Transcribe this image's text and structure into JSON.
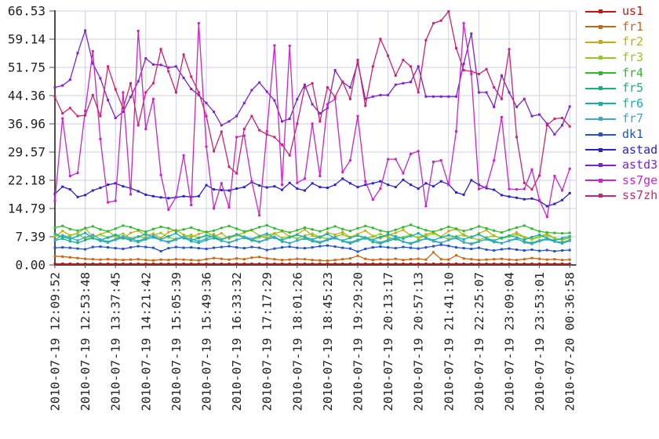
{
  "chart_data": {
    "type": "line",
    "title": "",
    "grid": true,
    "legend_position": "top-right-outside",
    "ylim": [
      0,
      66.53
    ],
    "points_per_series": 69,
    "y_tick_labels": [
      "0.00",
      "7.39",
      "14.79",
      "22.18",
      "29.57",
      "36.96",
      "44.36",
      "51.75",
      "59.14",
      "66.53"
    ],
    "y_tick_values": [
      0,
      7.39,
      14.79,
      22.18,
      29.57,
      36.96,
      44.36,
      51.75,
      59.14,
      66.53
    ],
    "x_tick_labels": [
      "2010-07-19 12:09:52",
      "2010-07-19 12:53:48",
      "2010-07-19 13:37:45",
      "2010-07-19 14:21:42",
      "2010-07-19 15:05:39",
      "2010-07-19 15:49:36",
      "2010-07-19 16:33:32",
      "2010-07-19 17:17:29",
      "2010-07-19 18:01:26",
      "2010-07-19 18:45:23",
      "2010-07-19 19:29:20",
      "2010-07-19 20:13:17",
      "2010-07-19 20:57:13",
      "2010-07-19 21:41:10",
      "2010-07-19 22:25:07",
      "2010-07-19 23:09:04",
      "2010-07-19 23:53:01",
      "2010-07-20 00:36:58"
    ],
    "series": [
      {
        "name": "us1",
        "color": "#cc1111",
        "values": [
          0.3,
          0.3,
          0.3,
          0.3,
          0.3,
          0.3,
          0.3,
          0.3,
          0.3,
          0.3,
          0.3,
          0.3,
          0.3,
          0.3,
          0.3,
          0.3,
          0.3,
          0.3,
          0.3,
          0.3,
          0.3,
          0.3,
          0.3,
          0.3,
          0.3,
          0.3,
          0.3,
          0.3,
          0.3,
          0.3,
          0.3,
          0.3,
          0.3,
          0.3,
          0.3,
          0.3,
          0.3,
          0.3,
          0.3,
          0.3,
          0.3,
          0.3,
          0.3,
          0.3,
          0.3,
          0.3,
          0.3,
          0.3,
          0.3,
          0.3,
          0.3,
          0.3,
          0.3,
          0.3,
          0.3,
          0.3,
          0.3,
          0.3,
          0.3,
          0.3,
          0.3,
          0.3,
          0.3,
          0.3,
          0.3,
          0.3,
          0.3,
          0.3,
          0.3
        ]
      },
      {
        "name": "fr1",
        "color": "#cc6611",
        "values": [
          2.3,
          2.2,
          2.0,
          1.8,
          1.6,
          1.5,
          1.4,
          1.5,
          1.4,
          1.3,
          1.4,
          1.5,
          1.3,
          1.2,
          1.4,
          1.3,
          1.5,
          1.4,
          1.3,
          1.2,
          1.5,
          1.8,
          1.6,
          1.4,
          1.7,
          1.5,
          1.9,
          2.1,
          1.7,
          1.5,
          1.3,
          1.4,
          1.6,
          1.5,
          1.3,
          1.2,
          1.1,
          1.3,
          1.5,
          1.7,
          2.4,
          1.6,
          1.3,
          1.5,
          1.4,
          1.6,
          1.3,
          1.5,
          1.6,
          1.4,
          3.3,
          1.5,
          1.4,
          2.5,
          1.7,
          1.5,
          1.3,
          1.4,
          1.5,
          1.6,
          1.4,
          1.3,
          1.5,
          1.8,
          1.6,
          1.4,
          1.5,
          1.3,
          1.4
        ]
      },
      {
        "name": "fr2",
        "color": "#c2ae11",
        "values": [
          7.4,
          8.9,
          7.8,
          8.3,
          9.7,
          7.2,
          8.0,
          8.8,
          7.5,
          6.9,
          8.4,
          9.0,
          7.7,
          8.2,
          7.0,
          8.6,
          9.2,
          7.9,
          7.3,
          8.1,
          8.7,
          7.5,
          8.3,
          6.9,
          7.8,
          8.5,
          9.1,
          7.6,
          7.0,
          8.2,
          8.8,
          7.4,
          8.0,
          9.3,
          7.7,
          7.1,
          8.5,
          7.9,
          8.6,
          7.3,
          8.1,
          9.0,
          7.6,
          7.0,
          7.8,
          8.4,
          9.2,
          7.7,
          7.2,
          8.0,
          8.6,
          7.4,
          8.9,
          9.4,
          7.8,
          7.1,
          8.3,
          9.1,
          7.6,
          7.0,
          7.7,
          8.5,
          7.3,
          6.8,
          7.5,
          8.2,
          7.0,
          6.6,
          7.2
        ]
      },
      {
        "name": "fr3",
        "color": "#96c81e",
        "values": [
          7.9,
          7.2,
          7.7,
          8.3,
          6.8,
          7.4,
          8.0,
          7.1,
          7.6,
          8.2,
          6.9,
          7.5,
          7.0,
          7.8,
          8.4,
          7.2,
          6.7,
          7.3,
          7.9,
          7.0,
          7.6,
          8.1,
          6.8,
          7.4,
          7.9,
          7.1,
          6.6,
          7.2,
          7.8,
          8.3,
          7.0,
          7.5,
          6.9,
          7.7,
          8.2,
          7.3,
          6.8,
          7.4,
          8.0,
          7.1,
          7.7,
          6.9,
          7.5,
          8.1,
          7.2,
          6.7,
          7.3,
          7.9,
          7.0,
          7.6,
          8.2,
          7.4,
          6.8,
          7.5,
          8.0,
          7.1,
          6.6,
          7.2,
          7.7,
          6.9,
          7.4,
          8.0,
          7.2,
          6.7,
          7.3,
          7.8,
          7.0,
          6.5,
          7.1
        ]
      },
      {
        "name": "fr4",
        "color": "#30b830",
        "values": [
          9.8,
          10.2,
          9.4,
          9.0,
          9.6,
          10.1,
          9.3,
          8.8,
          9.5,
          10.3,
          9.9,
          9.2,
          8.7,
          9.4,
          10.0,
          9.6,
          8.9,
          9.3,
          9.8,
          9.1,
          8.6,
          9.0,
          9.7,
          10.2,
          9.5,
          8.8,
          9.2,
          9.9,
          10.4,
          9.6,
          9.0,
          8.5,
          9.1,
          9.8,
          9.3,
          8.8,
          9.5,
          10.1,
          9.4,
          8.9,
          9.6,
          10.2,
          9.7,
          9.0,
          8.6,
          9.2,
          9.9,
          10.5,
          9.8,
          9.1,
          8.7,
          9.3,
          10.0,
          9.5,
          8.9,
          9.4,
          10.1,
          9.6,
          9.0,
          8.5,
          9.2,
          9.8,
          10.3,
          9.5,
          8.8,
          8.5,
          8.4,
          8.3,
          8.4
        ]
      },
      {
        "name": "fr5",
        "color": "#16b478",
        "values": [
          6.4,
          6.9,
          6.2,
          5.8,
          6.5,
          7.0,
          6.3,
          5.9,
          6.6,
          7.1,
          6.4,
          6.0,
          6.7,
          7.2,
          6.5,
          6.1,
          6.8,
          7.3,
          6.2,
          5.8,
          6.5,
          7.0,
          6.3,
          5.9,
          6.6,
          7.1,
          6.4,
          6.0,
          6.7,
          7.2,
          6.1,
          5.7,
          6.4,
          6.9,
          6.2,
          5.8,
          6.5,
          7.0,
          6.3,
          5.9,
          6.6,
          7.1,
          6.0,
          5.6,
          6.3,
          6.8,
          6.1,
          5.7,
          6.4,
          6.9,
          6.2,
          5.8,
          6.5,
          7.0,
          5.9,
          5.6,
          6.2,
          6.7,
          6.0,
          5.7,
          6.3,
          6.8,
          6.1,
          5.8,
          6.4,
          6.9,
          6.2,
          5.9,
          6.5
        ]
      },
      {
        "name": "fr6",
        "color": "#0cb4ac",
        "values": [
          8.2,
          7.4,
          6.8,
          7.6,
          8.4,
          7.0,
          6.5,
          7.2,
          7.9,
          7.1,
          6.6,
          7.4,
          8.1,
          7.3,
          6.7,
          7.5,
          8.3,
          7.0,
          6.4,
          7.1,
          7.8,
          7.2,
          6.6,
          7.3,
          8.0,
          7.4,
          6.8,
          7.6,
          8.2,
          7.1,
          6.5,
          7.2,
          7.9,
          7.3,
          6.7,
          7.4,
          8.1,
          7.0,
          6.4,
          7.1,
          7.7,
          7.2,
          6.6,
          7.3,
          8.0,
          7.5,
          6.9,
          7.6,
          8.3,
          7.1,
          6.5,
          7.2,
          7.8,
          7.3,
          6.7,
          7.4,
          8.0,
          7.0,
          6.4,
          7.1,
          7.7,
          7.2,
          6.6,
          7.3,
          7.9,
          7.0,
          6.4,
          7.0,
          7.5
        ]
      },
      {
        "name": "fr7",
        "color": "#3ea6cc",
        "values": [
          6.6,
          7.8,
          7.1,
          6.4,
          7.2,
          7.9,
          6.7,
          6.1,
          6.8,
          7.5,
          6.9,
          6.3,
          7.0,
          7.7,
          6.5,
          5.9,
          6.6,
          7.3,
          6.8,
          6.2,
          6.9,
          7.6,
          6.4,
          5.8,
          6.5,
          7.2,
          6.7,
          6.1,
          6.8,
          7.4,
          6.3,
          5.7,
          6.4,
          7.1,
          6.6,
          6.0,
          6.7,
          7.3,
          6.2,
          5.6,
          6.3,
          7.0,
          6.5,
          5.9,
          6.6,
          7.2,
          6.1,
          5.5,
          6.2,
          6.9,
          6.4,
          5.8,
          6.5,
          7.1,
          6.0,
          5.4,
          6.1,
          6.8,
          6.3,
          5.7,
          6.4,
          7.0,
          5.9,
          5.5,
          6.2,
          6.7,
          6.1,
          5.6,
          6.3
        ]
      },
      {
        "name": "dk1",
        "color": "#2353cc",
        "values": [
          4.5,
          4.6,
          4.5,
          4.3,
          4.1,
          4.7,
          4.8,
          4.6,
          4.4,
          4.2,
          4.6,
          4.9,
          4.7,
          4.5,
          3.6,
          4.4,
          4.7,
          4.5,
          4.6,
          4.4,
          4.2,
          4.5,
          4.7,
          4.9,
          4.6,
          4.4,
          4.7,
          4.5,
          3.9,
          4.3,
          4.6,
          4.8,
          4.5,
          4.4,
          4.6,
          4.9,
          5.1,
          4.8,
          4.5,
          4.3,
          3.5,
          4.2,
          4.6,
          4.8,
          4.6,
          4.4,
          4.7,
          4.5,
          4.3,
          4.6,
          4.9,
          5.3,
          5.0,
          4.6,
          4.4,
          4.2,
          4.5,
          4.0,
          3.8,
          4.1,
          4.3,
          4.0,
          3.8,
          4.0,
          3.7,
          3.9,
          3.6,
          3.8,
          3.9
        ]
      },
      {
        "name": "astad",
        "color": "#2a22c4",
        "values": [
          18.6,
          20.5,
          19.8,
          17.8,
          18.3,
          19.5,
          20.2,
          21.0,
          21.4,
          20.6,
          20.1,
          19.3,
          18.4,
          18.0,
          17.7,
          17.5,
          17.7,
          18.0,
          17.8,
          18.0,
          20.9,
          19.8,
          19.6,
          19.5,
          20.0,
          20.4,
          21.7,
          20.8,
          20.3,
          20.6,
          19.7,
          21.5,
          20.0,
          19.5,
          21.4,
          20.4,
          20.2,
          21.0,
          22.6,
          21.4,
          20.4,
          21.0,
          21.4,
          21.9,
          21.0,
          20.4,
          22.3,
          21.0,
          20.0,
          21.4,
          20.6,
          21.9,
          21.1,
          19.0,
          18.4,
          22.2,
          21.0,
          20.1,
          19.7,
          18.3,
          17.9,
          17.6,
          17.2,
          17.4,
          16.8,
          15.4,
          16.0,
          17.0,
          18.8
        ]
      },
      {
        "name": "astd3",
        "color": "#7e22cc",
        "values": [
          46.5,
          47.0,
          48.5,
          55.5,
          61.4,
          52.8,
          48.9,
          43.2,
          38.5,
          40.1,
          44.0,
          48.1,
          54.1,
          52.5,
          52.4,
          51.7,
          52.0,
          49.0,
          46.1,
          44.5,
          42.4,
          40.1,
          36.6,
          37.6,
          39.0,
          42.4,
          45.8,
          47.8,
          45.4,
          43.1,
          37.6,
          38.3,
          43.4,
          47.2,
          42.1,
          39.7,
          41.1,
          51.0,
          47.9,
          46.5,
          53.0,
          43.5,
          44.1,
          44.5,
          44.5,
          47.2,
          47.6,
          47.9,
          52.0,
          44.1,
          44.1,
          44.1,
          44.1,
          44.1,
          52.7,
          60.6,
          45.2,
          45.2,
          41.4,
          49.6,
          45.2,
          41.4,
          43.5,
          39.0,
          39.4,
          37.0,
          34.2,
          36.6,
          41.5
        ]
      },
      {
        "name": "ss7ge",
        "color": "#cc22cc",
        "values": [
          16.8,
          38.4,
          23.3,
          24.1,
          40.4,
          56.0,
          33.0,
          16.4,
          16.8,
          45.2,
          18.5,
          61.3,
          35.6,
          43.5,
          23.6,
          14.5,
          17.8,
          28.7,
          15.7,
          63.3,
          31.0,
          14.8,
          21.4,
          15.1,
          33.5,
          33.9,
          21.9,
          13.0,
          35.0,
          57.5,
          21.0,
          57.4,
          21.5,
          22.6,
          37.0,
          23.3,
          42.1,
          43.5,
          24.3,
          27.4,
          39.0,
          21.9,
          17.1,
          20.0,
          27.7,
          27.7,
          24.0,
          29.1,
          29.8,
          15.4,
          27.0,
          27.4,
          21.0,
          35.0,
          63.3,
          50.0,
          19.9,
          20.5,
          27.4,
          38.7,
          19.9,
          19.8,
          19.9,
          25.0,
          17.0,
          12.6,
          23.3,
          19.5,
          25.2
        ]
      },
      {
        "name": "ss7zh",
        "color": "#cc2270",
        "values": [
          44.0,
          39.7,
          41.1,
          39.0,
          39.2,
          44.5,
          39.0,
          52.0,
          46.0,
          41.0,
          47.6,
          36.6,
          45.2,
          47.6,
          56.5,
          50.7,
          45.2,
          55.1,
          49.3,
          45.2,
          39.0,
          29.8,
          34.9,
          25.7,
          24.0,
          35.6,
          39.0,
          35.3,
          34.2,
          33.5,
          31.5,
          28.7,
          37.0,
          46.5,
          47.6,
          37.6,
          46.5,
          44.0,
          48.0,
          43.5,
          53.7,
          41.7,
          52.0,
          59.2,
          54.8,
          49.6,
          53.7,
          52.0,
          45.2,
          58.9,
          63.3,
          64.0,
          66.4,
          56.8,
          51.0,
          50.7,
          50.0,
          51.3,
          46.5,
          43.5,
          56.5,
          33.5,
          21.5,
          19.8,
          23.4,
          36.6,
          38.3,
          38.5,
          36.3
        ]
      }
    ]
  },
  "style": {
    "background": "#ffffff",
    "grid_color": "#cdcdeb",
    "axis_color": "#4d4d4d",
    "tick_label_color": "#222222"
  }
}
